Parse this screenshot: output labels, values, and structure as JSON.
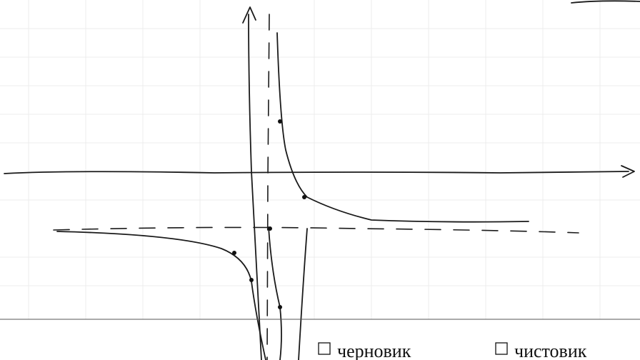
{
  "checkboxes": [
    {
      "label": "черновик"
    },
    {
      "label": "чистовик"
    }
  ]
}
